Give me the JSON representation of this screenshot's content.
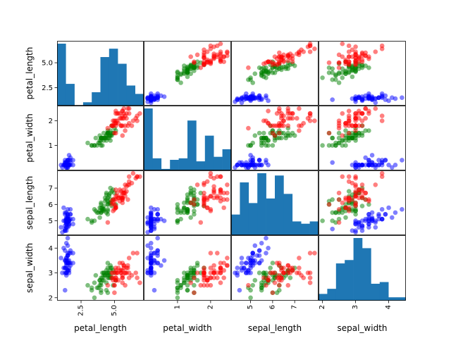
{
  "chart_data": {
    "type": "scatter",
    "variables": [
      "petal_length",
      "petal_width",
      "sepal_length",
      "sepal_width"
    ],
    "variable_labels": [
      "petal_length",
      "petal_width",
      "sepal_length",
      "sepal_width"
    ],
    "ranges": {
      "petal_length": [
        1.0,
        6.9
      ],
      "petal_width": [
        0.1,
        2.5
      ],
      "sepal_length": [
        4.3,
        7.9
      ],
      "sepal_width": [
        2.0,
        4.4
      ]
    },
    "ticks": {
      "petal_length": [
        {
          "value": 2.5,
          "label": "2.5"
        },
        {
          "value": 5.0,
          "label": "5.0"
        }
      ],
      "petal_width": [
        {
          "value": 1,
          "label": "1"
        },
        {
          "value": 2,
          "label": "2"
        }
      ],
      "sepal_length": [
        {
          "value": 5,
          "label": "5"
        },
        {
          "value": 6,
          "label": "6"
        },
        {
          "value": 7,
          "label": "7"
        }
      ],
      "sepal_width": [
        {
          "value": 2,
          "label": "2"
        },
        {
          "value": 3,
          "label": "3"
        },
        {
          "value": 4,
          "label": "4"
        }
      ]
    },
    "diagonal": "histogram",
    "histogram_color": "#1f77b4",
    "histograms": {
      "petal_length": [
        37,
        13,
        0,
        2,
        8,
        29,
        34,
        25,
        12,
        7
      ],
      "petal_width": [
        41,
        8,
        1,
        7,
        8,
        33,
        6,
        23,
        9,
        14
      ],
      "sepal_length": [
        9,
        23,
        14,
        27,
        16,
        26,
        18,
        6,
        5,
        6
      ],
      "sepal_width": [
        4,
        7,
        22,
        24,
        37,
        31,
        10,
        11,
        2,
        2
      ]
    },
    "grid": false,
    "legend": "none",
    "marker_alpha": 0.5,
    "series": [
      {
        "color": "#0000ff",
        "points": [
          [
            5.1,
            3.5,
            1.4,
            0.2
          ],
          [
            4.9,
            3.0,
            1.4,
            0.2
          ],
          [
            4.7,
            3.2,
            1.3,
            0.2
          ],
          [
            4.6,
            3.1,
            1.5,
            0.2
          ],
          [
            5.0,
            3.6,
            1.4,
            0.2
          ],
          [
            5.4,
            3.9,
            1.7,
            0.4
          ],
          [
            4.6,
            3.4,
            1.4,
            0.3
          ],
          [
            5.0,
            3.4,
            1.5,
            0.2
          ],
          [
            4.4,
            2.9,
            1.4,
            0.2
          ],
          [
            4.9,
            3.1,
            1.5,
            0.1
          ],
          [
            5.4,
            3.7,
            1.5,
            0.2
          ],
          [
            4.8,
            3.4,
            1.6,
            0.2
          ],
          [
            4.8,
            3.0,
            1.4,
            0.1
          ],
          [
            4.3,
            3.0,
            1.1,
            0.1
          ],
          [
            5.8,
            4.0,
            1.2,
            0.2
          ],
          [
            5.7,
            4.4,
            1.5,
            0.4
          ],
          [
            5.4,
            3.9,
            1.3,
            0.4
          ],
          [
            5.1,
            3.5,
            1.4,
            0.3
          ],
          [
            5.7,
            3.8,
            1.7,
            0.3
          ],
          [
            5.1,
            3.8,
            1.5,
            0.3
          ],
          [
            5.4,
            3.4,
            1.7,
            0.2
          ],
          [
            5.1,
            3.7,
            1.5,
            0.4
          ],
          [
            4.6,
            3.6,
            1.0,
            0.2
          ],
          [
            5.1,
            3.3,
            1.7,
            0.5
          ],
          [
            4.8,
            3.4,
            1.9,
            0.2
          ],
          [
            5.0,
            3.0,
            1.6,
            0.2
          ],
          [
            5.0,
            3.4,
            1.6,
            0.4
          ],
          [
            5.2,
            3.5,
            1.5,
            0.2
          ],
          [
            5.2,
            3.4,
            1.4,
            0.2
          ],
          [
            4.7,
            3.2,
            1.6,
            0.2
          ],
          [
            4.8,
            3.1,
            1.6,
            0.2
          ],
          [
            5.4,
            3.4,
            1.5,
            0.4
          ],
          [
            5.2,
            4.1,
            1.5,
            0.1
          ],
          [
            5.5,
            4.2,
            1.4,
            0.2
          ],
          [
            4.9,
            3.1,
            1.5,
            0.2
          ],
          [
            5.0,
            3.2,
            1.2,
            0.2
          ],
          [
            5.5,
            3.5,
            1.3,
            0.2
          ],
          [
            4.9,
            3.6,
            1.4,
            0.1
          ],
          [
            4.4,
            3.0,
            1.3,
            0.2
          ],
          [
            5.1,
            3.4,
            1.5,
            0.2
          ],
          [
            5.0,
            3.5,
            1.3,
            0.3
          ],
          [
            4.5,
            2.3,
            1.3,
            0.3
          ],
          [
            4.4,
            3.2,
            1.3,
            0.2
          ],
          [
            5.0,
            3.5,
            1.6,
            0.6
          ],
          [
            5.1,
            3.8,
            1.9,
            0.4
          ],
          [
            4.8,
            3.0,
            1.4,
            0.3
          ],
          [
            5.1,
            3.8,
            1.6,
            0.2
          ],
          [
            4.6,
            3.2,
            1.4,
            0.2
          ],
          [
            5.3,
            3.7,
            1.5,
            0.2
          ],
          [
            5.0,
            3.3,
            1.4,
            0.2
          ]
        ]
      },
      {
        "color": "#008000",
        "points": [
          [
            7.0,
            3.2,
            4.7,
            1.4
          ],
          [
            6.4,
            3.2,
            4.5,
            1.5
          ],
          [
            6.9,
            3.1,
            4.9,
            1.5
          ],
          [
            5.5,
            2.3,
            4.0,
            1.3
          ],
          [
            6.5,
            2.8,
            4.6,
            1.5
          ],
          [
            5.7,
            2.8,
            4.5,
            1.3
          ],
          [
            6.3,
            3.3,
            4.7,
            1.6
          ],
          [
            4.9,
            2.4,
            3.3,
            1.0
          ],
          [
            6.6,
            2.9,
            4.6,
            1.3
          ],
          [
            5.2,
            2.7,
            3.9,
            1.4
          ],
          [
            5.0,
            2.0,
            3.5,
            1.0
          ],
          [
            5.9,
            3.0,
            4.2,
            1.5
          ],
          [
            6.0,
            2.2,
            4.0,
            1.0
          ],
          [
            6.1,
            2.9,
            4.7,
            1.4
          ],
          [
            5.6,
            2.9,
            3.6,
            1.3
          ],
          [
            6.7,
            3.1,
            4.4,
            1.4
          ],
          [
            5.6,
            3.0,
            4.5,
            1.5
          ],
          [
            5.8,
            2.7,
            4.1,
            1.0
          ],
          [
            6.2,
            2.2,
            4.5,
            1.5
          ],
          [
            5.6,
            2.5,
            3.9,
            1.1
          ],
          [
            5.9,
            3.2,
            4.8,
            1.8
          ],
          [
            6.1,
            2.8,
            4.0,
            1.3
          ],
          [
            6.3,
            2.5,
            4.9,
            1.5
          ],
          [
            6.1,
            2.8,
            4.7,
            1.2
          ],
          [
            6.4,
            2.9,
            4.3,
            1.3
          ],
          [
            6.6,
            3.0,
            4.4,
            1.4
          ],
          [
            6.8,
            2.8,
            4.8,
            1.4
          ],
          [
            6.7,
            3.0,
            5.0,
            1.7
          ],
          [
            6.0,
            2.9,
            4.5,
            1.5
          ],
          [
            5.7,
            2.6,
            3.5,
            1.0
          ],
          [
            5.5,
            2.4,
            3.8,
            1.1
          ],
          [
            5.5,
            2.4,
            3.7,
            1.0
          ],
          [
            5.8,
            2.7,
            3.9,
            1.2
          ],
          [
            6.0,
            2.7,
            5.1,
            1.6
          ],
          [
            5.4,
            3.0,
            4.5,
            1.5
          ],
          [
            6.0,
            3.4,
            4.5,
            1.6
          ],
          [
            6.7,
            3.1,
            4.7,
            1.5
          ],
          [
            6.3,
            2.3,
            4.4,
            1.3
          ],
          [
            5.6,
            3.0,
            4.1,
            1.3
          ],
          [
            5.5,
            2.5,
            4.0,
            1.3
          ],
          [
            5.5,
            2.6,
            4.4,
            1.2
          ],
          [
            6.1,
            3.0,
            4.6,
            1.4
          ],
          [
            5.8,
            2.6,
            4.0,
            1.2
          ],
          [
            5.0,
            2.3,
            3.3,
            1.0
          ],
          [
            5.6,
            2.7,
            4.2,
            1.3
          ],
          [
            5.7,
            3.0,
            4.2,
            1.2
          ],
          [
            5.7,
            2.9,
            4.2,
            1.3
          ],
          [
            6.2,
            2.9,
            4.3,
            1.3
          ],
          [
            5.1,
            2.5,
            3.0,
            1.1
          ],
          [
            5.7,
            2.8,
            4.1,
            1.3
          ]
        ]
      },
      {
        "color": "#ff0000",
        "points": [
          [
            6.3,
            3.3,
            6.0,
            2.5
          ],
          [
            5.8,
            2.7,
            5.1,
            1.9
          ],
          [
            7.1,
            3.0,
            5.9,
            2.1
          ],
          [
            6.3,
            2.9,
            5.6,
            1.8
          ],
          [
            6.5,
            3.0,
            5.8,
            2.2
          ],
          [
            7.6,
            3.0,
            6.6,
            2.1
          ],
          [
            4.9,
            2.5,
            4.5,
            1.7
          ],
          [
            7.3,
            2.9,
            6.3,
            1.8
          ],
          [
            6.7,
            2.5,
            5.8,
            1.8
          ],
          [
            7.2,
            3.6,
            6.1,
            2.5
          ],
          [
            6.5,
            3.2,
            5.1,
            2.0
          ],
          [
            6.4,
            2.7,
            5.3,
            1.9
          ],
          [
            6.8,
            3.0,
            5.5,
            2.1
          ],
          [
            5.7,
            2.5,
            5.0,
            2.0
          ],
          [
            5.8,
            2.8,
            5.1,
            2.4
          ],
          [
            6.4,
            3.2,
            5.3,
            2.3
          ],
          [
            6.5,
            3.0,
            5.5,
            1.8
          ],
          [
            7.7,
            3.8,
            6.7,
            2.2
          ],
          [
            7.7,
            2.6,
            6.9,
            2.3
          ],
          [
            6.0,
            2.2,
            5.0,
            1.5
          ],
          [
            6.9,
            3.2,
            5.7,
            2.3
          ],
          [
            5.6,
            2.8,
            4.9,
            2.0
          ],
          [
            7.7,
            2.8,
            6.7,
            2.0
          ],
          [
            6.3,
            2.7,
            4.9,
            1.8
          ],
          [
            6.7,
            3.3,
            5.7,
            2.1
          ],
          [
            7.2,
            3.2,
            6.0,
            1.8
          ],
          [
            6.2,
            2.8,
            4.8,
            1.8
          ],
          [
            6.1,
            3.0,
            4.9,
            1.8
          ],
          [
            6.4,
            2.8,
            5.6,
            2.1
          ],
          [
            7.2,
            3.0,
            5.8,
            1.6
          ],
          [
            7.4,
            2.8,
            6.1,
            1.9
          ],
          [
            7.9,
            3.8,
            6.4,
            2.0
          ],
          [
            6.4,
            2.8,
            5.6,
            2.2
          ],
          [
            6.3,
            2.8,
            5.1,
            1.5
          ],
          [
            6.1,
            2.6,
            5.6,
            1.4
          ],
          [
            7.7,
            3.0,
            6.1,
            2.3
          ],
          [
            6.3,
            3.4,
            5.6,
            2.4
          ],
          [
            6.4,
            3.1,
            5.5,
            1.8
          ],
          [
            6.0,
            3.0,
            4.8,
            1.8
          ],
          [
            6.9,
            3.1,
            5.4,
            2.1
          ],
          [
            6.7,
            3.1,
            5.6,
            2.4
          ],
          [
            6.9,
            3.1,
            5.1,
            2.3
          ],
          [
            5.8,
            2.7,
            5.1,
            1.9
          ],
          [
            6.8,
            3.2,
            5.9,
            2.3
          ],
          [
            6.7,
            3.3,
            5.7,
            2.5
          ],
          [
            6.7,
            3.0,
            5.2,
            2.3
          ],
          [
            6.3,
            2.5,
            5.0,
            1.9
          ],
          [
            6.5,
            3.0,
            5.2,
            2.0
          ],
          [
            6.2,
            3.4,
            5.4,
            2.3
          ],
          [
            5.9,
            3.0,
            5.1,
            1.8
          ]
        ]
      }
    ]
  }
}
